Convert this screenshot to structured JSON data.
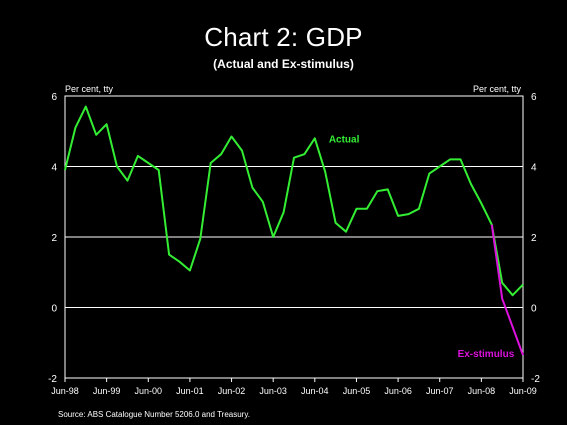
{
  "title": "Chart 2: GDP",
  "subtitle": "(Actual and Ex-stimulus)",
  "source": "Source:  ABS Catalogue Number 5206.0 and Treasury.",
  "chart_data": {
    "type": "line",
    "left_unit": "Per cent, tty",
    "right_unit": "Per cent, tty",
    "ylim": [
      -2,
      6
    ],
    "y_ticks": [
      "-2",
      "0",
      "2",
      "4",
      "6"
    ],
    "grid": true,
    "x_tick_labels": [
      "Jun-98",
      "Jun-99",
      "Jun-00",
      "Jun-01",
      "Jun-02",
      "Jun-03",
      "Jun-04",
      "Jun-05",
      "Jun-06",
      "Jun-07",
      "Jun-08",
      "Jun-09"
    ],
    "series": [
      {
        "name": "Actual",
        "color": "#33ee33",
        "x": [
          "Jun-98",
          "Sep-98",
          "Dec-98",
          "Mar-99",
          "Jun-99",
          "Sep-99",
          "Dec-99",
          "Mar-00",
          "Jun-00",
          "Sep-00",
          "Dec-00",
          "Mar-01",
          "Jun-01",
          "Sep-01",
          "Dec-01",
          "Mar-02",
          "Jun-02",
          "Sep-02",
          "Dec-02",
          "Mar-03",
          "Jun-03",
          "Sep-03",
          "Dec-03",
          "Mar-04",
          "Jun-04",
          "Sep-04",
          "Dec-04",
          "Mar-05",
          "Jun-05",
          "Sep-05",
          "Dec-05",
          "Mar-06",
          "Jun-06",
          "Sep-06",
          "Dec-06",
          "Mar-07",
          "Jun-07",
          "Sep-07",
          "Dec-07",
          "Mar-08",
          "Jun-08",
          "Sep-08",
          "Dec-08",
          "Mar-09",
          "Jun-09"
        ],
        "values": [
          3.9,
          5.1,
          5.7,
          4.9,
          5.2,
          4.0,
          3.6,
          4.3,
          4.1,
          3.9,
          1.5,
          1.3,
          1.05,
          1.95,
          4.1,
          4.35,
          4.85,
          4.45,
          3.4,
          3.0,
          2.0,
          2.7,
          4.25,
          4.35,
          4.8,
          3.85,
          2.4,
          2.15,
          2.8,
          2.8,
          3.3,
          3.35,
          2.6,
          2.65,
          2.8,
          3.8,
          4.0,
          4.2,
          4.2,
          3.5,
          2.95,
          2.35,
          0.7,
          0.35,
          0.65
        ]
      },
      {
        "name": "Ex-stimulus",
        "color": "#dd11dd",
        "x": [
          "Sep-08",
          "Dec-08",
          "Mar-09",
          "Jun-09"
        ],
        "values": [
          2.35,
          0.25,
          -0.55,
          -1.35
        ]
      }
    ],
    "annotations": [
      {
        "text": "Actual",
        "series": "Actual"
      },
      {
        "text": "Ex-stimulus",
        "series": "Ex-stimulus"
      }
    ]
  }
}
